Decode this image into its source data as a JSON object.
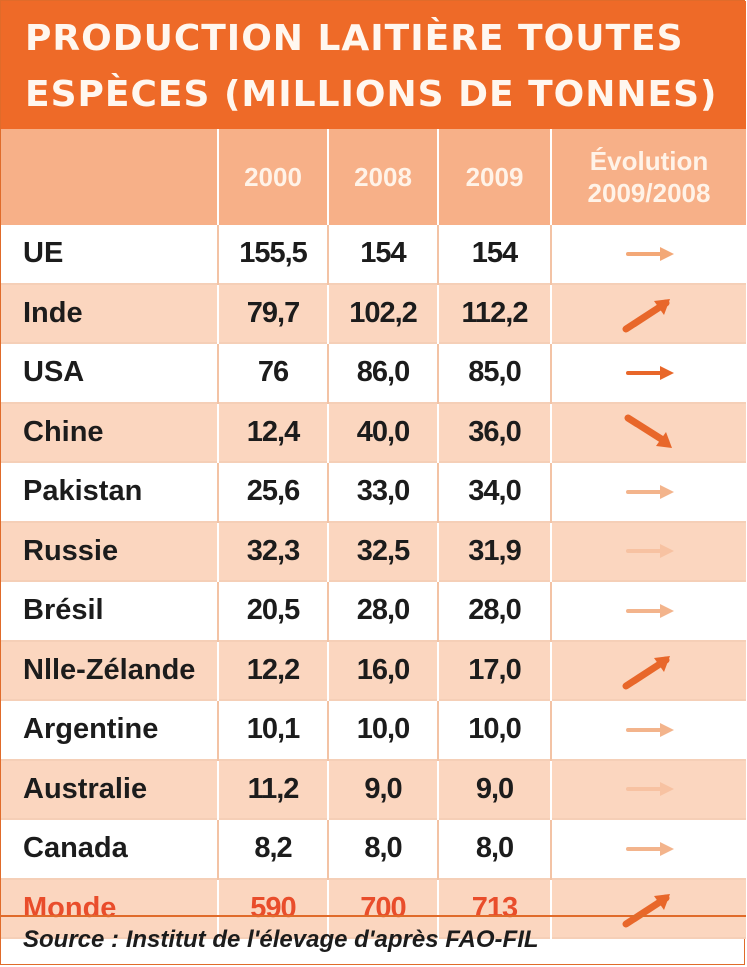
{
  "title": {
    "line1": "PRODUCTION LAITIÈRE TOUTES",
    "line2": "ESPÈCES (MILLIONS DE TONNES)"
  },
  "columns": [
    "",
    "2000",
    "2008",
    "2009",
    "Évolution 2009/2008"
  ],
  "column_header_evolution": {
    "line1": "Évolution",
    "line2": "2009/2008"
  },
  "rows": [
    {
      "country": "UE",
      "y2000": "155,5",
      "y2008": "154",
      "y2009": "154",
      "trend": "stable",
      "arrow_color": "#f3a877"
    },
    {
      "country": "Inde",
      "y2000": "79,7",
      "y2008": "102,2",
      "y2009": "112,2",
      "trend": "up",
      "arrow_color": "#e8672a"
    },
    {
      "country": "USA",
      "y2000": "76",
      "y2008": "86,0",
      "y2009": "85,0",
      "trend": "stable",
      "arrow_color": "#e8672a"
    },
    {
      "country": "Chine",
      "y2000": "12,4",
      "y2008": "40,0",
      "y2009": "36,0",
      "trend": "down",
      "arrow_color": "#e8672a"
    },
    {
      "country": "Pakistan",
      "y2000": "25,6",
      "y2008": "33,0",
      "y2009": "34,0",
      "trend": "stable",
      "arrow_color": "#f3b48c"
    },
    {
      "country": "Russie",
      "y2000": "32,3",
      "y2008": "32,5",
      "y2009": "31,9",
      "trend": "stable",
      "arrow_color": "#f7c2a2"
    },
    {
      "country": "Brésil",
      "y2000": "20,5",
      "y2008": "28,0",
      "y2009": "28,0",
      "trend": "stable",
      "arrow_color": "#f3b48c"
    },
    {
      "country": "Nlle-Zélande",
      "y2000": "12,2",
      "y2008": "16,0",
      "y2009": "17,0",
      "trend": "up",
      "arrow_color": "#e8672a"
    },
    {
      "country": "Argentine",
      "y2000": "10,1",
      "y2008": "10,0",
      "y2009": "10,0",
      "trend": "stable",
      "arrow_color": "#f3b48c"
    },
    {
      "country": "Australie",
      "y2000": "11,2",
      "y2008": "9,0",
      "y2009": "9,0",
      "trend": "stable",
      "arrow_color": "#f7c2a2"
    },
    {
      "country": "Canada",
      "y2000": "8,2",
      "y2008": "8,0",
      "y2009": "8,0",
      "trend": "stable",
      "arrow_color": "#f3b48c"
    },
    {
      "country": "Monde",
      "y2000": "590",
      "y2008": "700",
      "y2009": "713",
      "trend": "up",
      "arrow_color": "#e8672a",
      "highlight": true
    }
  ],
  "source": "Source : Institut de l'élevage d'après FAO-FIL",
  "colors": {
    "title_bg": "#ee6a28",
    "header_bg": "#f7b088",
    "row_alt_bg": "#fbd6bf",
    "world_text": "#e94d2b"
  }
}
